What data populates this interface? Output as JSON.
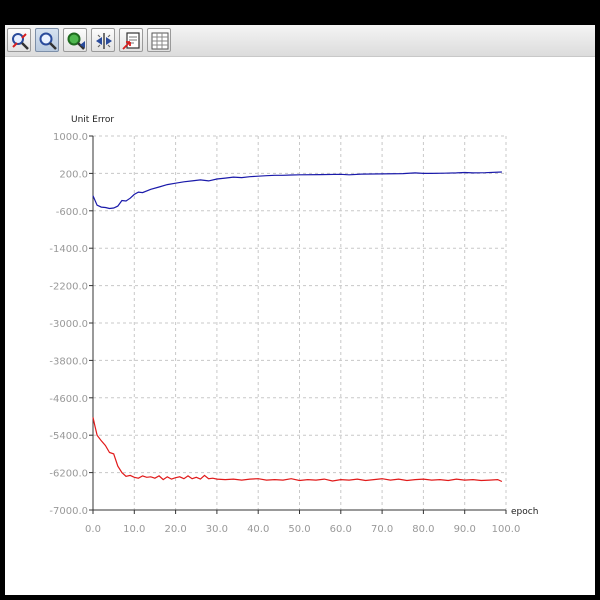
{
  "toolbar": {
    "buttons": [
      {
        "name": "zoom-in-icon",
        "active": false
      },
      {
        "name": "zoom-icon",
        "active": true
      },
      {
        "name": "zoom-fit-icon",
        "active": false
      },
      {
        "name": "pan-icon",
        "active": false
      },
      {
        "name": "export-image-icon",
        "active": false
      },
      {
        "name": "table-icon",
        "active": false
      }
    ]
  },
  "chart_data": {
    "type": "line",
    "ylabel": "Unit Error",
    "xlabel": "epoch",
    "xlim": [
      0,
      100
    ],
    "ylim": [
      -7000,
      1000
    ],
    "xticks": [
      "0.0",
      "10.0",
      "20.0",
      "30.0",
      "40.0",
      "50.0",
      "60.0",
      "70.0",
      "80.0",
      "90.0",
      "100.0"
    ],
    "yticks": [
      "1000.0",
      "200.0",
      "-600.0",
      "-1400.0",
      "-2200.0",
      "-3000.0",
      "-3800.0",
      "-4600.0",
      "-5400.0",
      "-6200.0",
      "-7000.0"
    ],
    "grid": true,
    "series": [
      {
        "color": "#1a1aaa",
        "x": [
          0,
          1,
          2,
          3,
          4,
          5,
          6,
          7,
          8,
          9,
          10,
          11,
          12,
          14,
          16,
          18,
          20,
          22,
          24,
          26,
          28,
          30,
          32,
          34,
          36,
          38,
          40,
          42,
          44,
          46,
          48,
          50,
          55,
          60,
          62,
          65,
          70,
          75,
          78,
          80,
          82,
          85,
          88,
          90,
          92,
          95,
          99
        ],
        "y": [
          -280,
          -480,
          -520,
          -530,
          -550,
          -540,
          -500,
          -380,
          -390,
          -330,
          -250,
          -200,
          -210,
          -140,
          -90,
          -40,
          -10,
          20,
          40,
          60,
          40,
          80,
          100,
          120,
          110,
          130,
          140,
          150,
          160,
          160,
          165,
          170,
          175,
          180,
          170,
          185,
          190,
          195,
          210,
          200,
          200,
          205,
          210,
          220,
          210,
          215,
          230
        ]
      },
      {
        "color": "#e11a1a",
        "x": [
          0,
          0.5,
          1,
          2,
          3,
          4,
          5,
          6,
          7,
          8,
          9,
          10,
          11,
          12,
          13,
          14,
          15,
          16,
          17,
          18,
          19,
          20,
          21,
          22,
          23,
          24,
          25,
          26,
          27,
          28,
          29,
          30,
          32,
          34,
          36,
          38,
          40,
          42,
          44,
          46,
          48,
          50,
          52,
          54,
          56,
          58,
          60,
          62,
          64,
          66,
          68,
          70,
          72,
          74,
          76,
          78,
          80,
          82,
          84,
          86,
          88,
          90,
          92,
          94,
          96,
          98,
          99
        ],
        "y": [
          -5020,
          -5220,
          -5400,
          -5520,
          -5620,
          -5770,
          -5800,
          -6060,
          -6200,
          -6280,
          -6260,
          -6300,
          -6320,
          -6270,
          -6300,
          -6290,
          -6320,
          -6270,
          -6350,
          -6290,
          -6340,
          -6310,
          -6290,
          -6330,
          -6270,
          -6330,
          -6300,
          -6340,
          -6260,
          -6330,
          -6320,
          -6340,
          -6350,
          -6340,
          -6360,
          -6340,
          -6330,
          -6360,
          -6350,
          -6360,
          -6330,
          -6370,
          -6350,
          -6360,
          -6340,
          -6380,
          -6350,
          -6360,
          -6340,
          -6370,
          -6350,
          -6330,
          -6360,
          -6340,
          -6370,
          -6350,
          -6340,
          -6360,
          -6350,
          -6370,
          -6340,
          -6360,
          -6350,
          -6370,
          -6360,
          -6350,
          -6390
        ]
      }
    ]
  }
}
